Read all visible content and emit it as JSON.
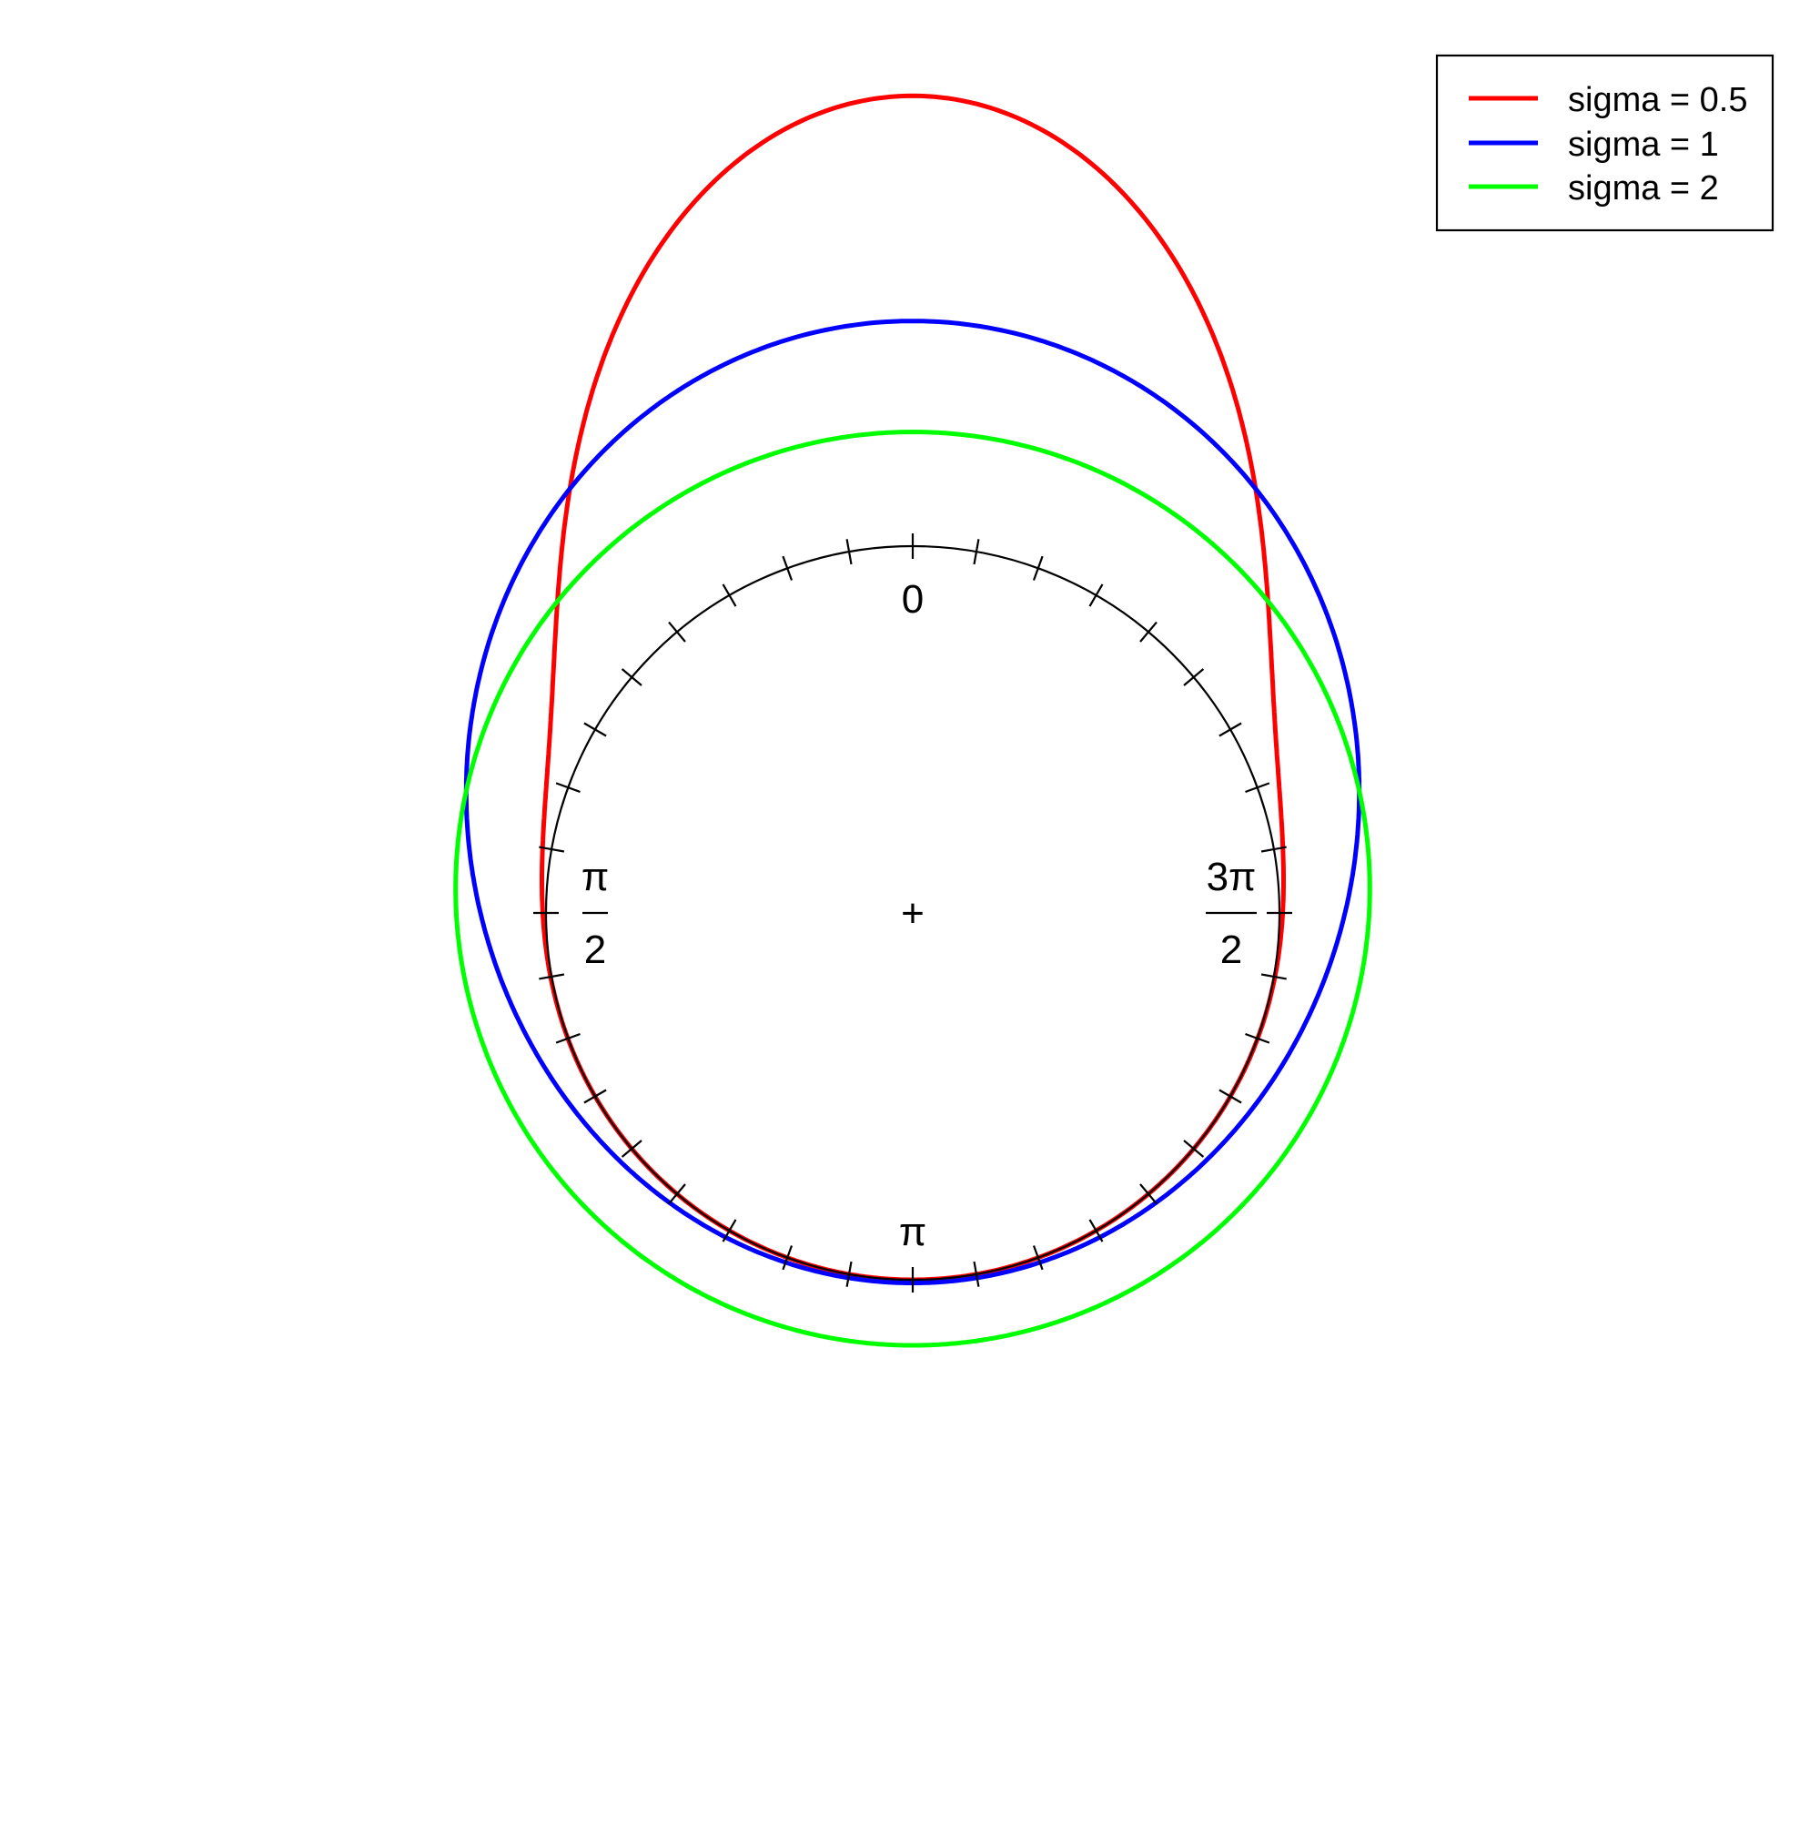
{
  "chart_data": {
    "type": "line",
    "coordinate_system": "circular",
    "zero_direction": "top",
    "rotation": "counter-clockwise",
    "tick_count": 36,
    "tick_labels": {
      "zero": "0",
      "half_pi_num": "π",
      "half_pi_den": "2",
      "pi": "π",
      "three_half_pi_num": "3π",
      "three_half_pi_den": "2"
    },
    "center_marker": "+",
    "legend_position": "top-right",
    "series": [
      {
        "name": "sigma = 0.5",
        "color": "#ff0000",
        "sigma": 0.5
      },
      {
        "name": "sigma = 1",
        "color": "#0000ff",
        "sigma": 1
      },
      {
        "name": "sigma = 2",
        "color": "#00ff00",
        "sigma": 2
      }
    ]
  }
}
